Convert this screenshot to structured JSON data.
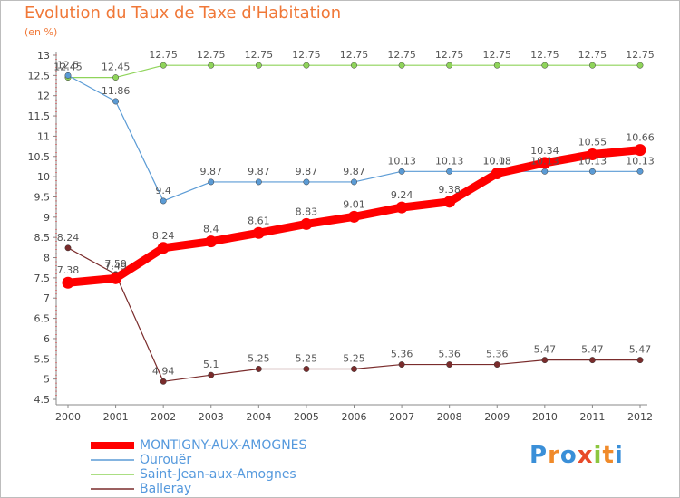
{
  "header": {
    "title": "Evolution du Taux de Taxe d'Habitation",
    "unit": "(en %)"
  },
  "logo": {
    "text": "Proxiti",
    "letters": [
      {
        "ch": "P",
        "color": "#3a8fd8"
      },
      {
        "ch": "r",
        "color": "#f08a2a"
      },
      {
        "ch": "o",
        "color": "#3a8fd8"
      },
      {
        "ch": "x",
        "color": "#e84a2a"
      },
      {
        "ch": "i",
        "color": "#8cc63f"
      },
      {
        "ch": "t",
        "color": "#f08a2a"
      },
      {
        "ch": "i",
        "color": "#3a8fd8"
      }
    ]
  },
  "chart_data": {
    "type": "line",
    "title": "Evolution du Taux de Taxe d'Habitation",
    "ylabel": "(en %)",
    "xlabel": "",
    "x": [
      "2000",
      "2001",
      "2002",
      "2003",
      "2004",
      "2005",
      "2006",
      "2007",
      "2008",
      "2009",
      "2010",
      "2011",
      "2012"
    ],
    "ylim": [
      4.5,
      13
    ],
    "yticks": [
      "4.5",
      "5",
      "5.5",
      "6",
      "6.5",
      "7",
      "7.5",
      "8",
      "8.5",
      "9",
      "9.5",
      "10",
      "10.5",
      "11",
      "11.5",
      "12",
      "12.5",
      "13"
    ],
    "grid": false,
    "legend_position": "bottom-left",
    "series": [
      {
        "name": "MONTIGNY-AUX-AMOGNES",
        "color": "#ff0000",
        "values": [
          7.38,
          7.49,
          8.24,
          8.4,
          8.61,
          8.83,
          9.01,
          9.24,
          9.38,
          10.08,
          10.34,
          10.55,
          10.66
        ],
        "labels": [
          "7.38",
          "7.49",
          "8.24",
          "8.4",
          "8.61",
          "8.83",
          "9.01",
          "9.24",
          "9.38",
          "10.08",
          "10.34",
          "10.55",
          "10.66"
        ]
      },
      {
        "name": "Ourouër",
        "color": "#5b9bd5",
        "values": [
          12.5,
          11.86,
          9.4,
          9.87,
          9.87,
          9.87,
          9.87,
          10.13,
          10.13,
          10.13,
          10.13,
          10.13,
          10.13
        ],
        "labels": [
          "12.5",
          "11.86",
          "9.4",
          "9.87",
          "9.87",
          "9.87",
          "9.87",
          "10.13",
          "10.13",
          "10.13",
          "10.13",
          "10.13",
          "10.13"
        ]
      },
      {
        "name": "Saint-Jean-aux-Amognes",
        "color": "#8fd45a",
        "values": [
          12.45,
          12.45,
          12.75,
          12.75,
          12.75,
          12.75,
          12.75,
          12.75,
          12.75,
          12.75,
          12.75,
          12.75,
          12.75
        ],
        "labels": [
          "12.45",
          "12.45",
          "12.75",
          "12.75",
          "12.75",
          "12.75",
          "12.75",
          "12.75",
          "12.75",
          "12.75",
          "12.75",
          "12.75",
          "12.75"
        ]
      },
      {
        "name": "Balleray",
        "color": "#7a2c2c",
        "values": [
          8.24,
          7.59,
          4.94,
          5.1,
          5.25,
          5.25,
          5.25,
          5.36,
          5.36,
          5.36,
          5.47,
          5.47,
          5.47
        ],
        "labels": [
          "8.24",
          "7.59",
          "4.94",
          "5.1",
          "5.25",
          "5.25",
          "5.25",
          "5.36",
          "5.36",
          "5.36",
          "5.47",
          "5.47",
          "5.47"
        ]
      }
    ]
  }
}
